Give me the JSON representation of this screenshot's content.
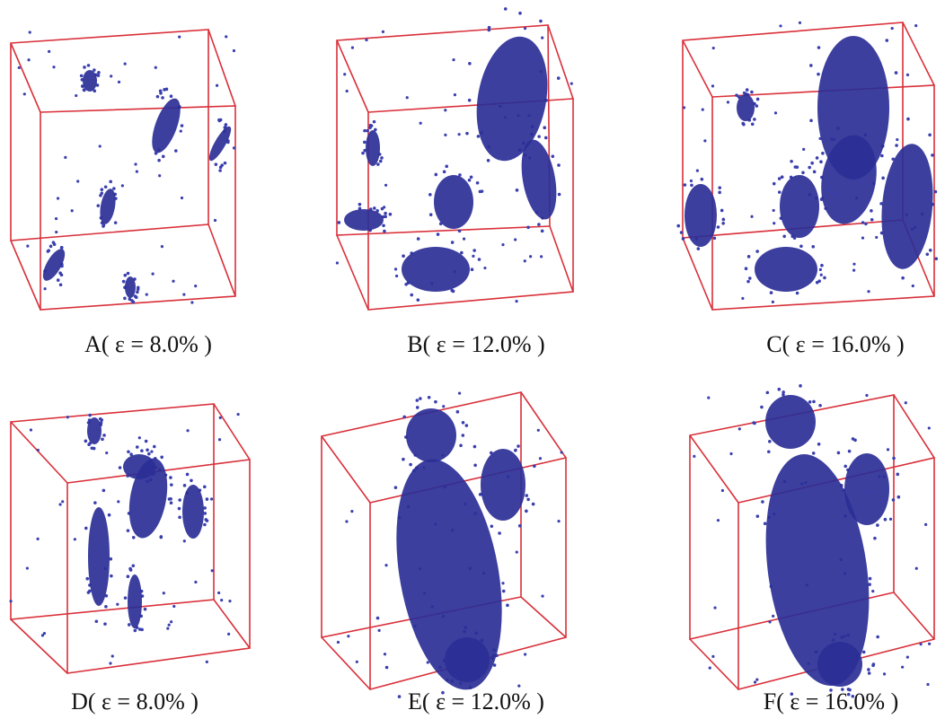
{
  "panels": [
    {
      "caption": "A( ε = 8.0% )"
    },
    {
      "caption": "B( ε = 12.0% )"
    },
    {
      "caption": "C( ε = 16.0% )"
    },
    {
      "caption": "D( ε = 8.0% )"
    },
    {
      "caption": "E( ε = 12.0% )"
    },
    {
      "caption": "F( ε = 16.0% )"
    }
  ]
}
